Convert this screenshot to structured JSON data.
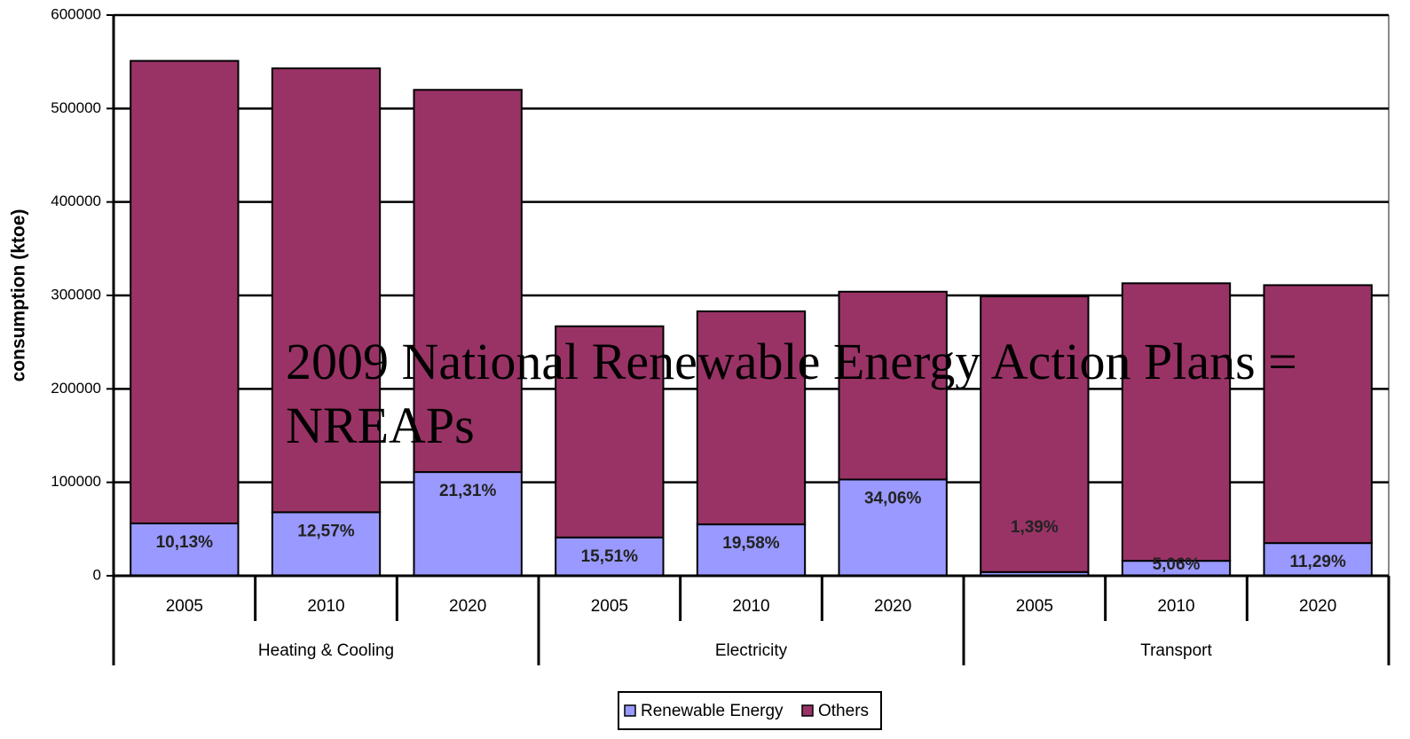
{
  "chart_data": {
    "type": "stacked_bar",
    "title": "2009 National Renewable Energy Action Plans = NREAPs",
    "y_label": "consumption (ktoe)",
    "groups": [
      {
        "name": "Heating & Cooling",
        "categories": [
          "2005",
          "2010",
          "2020"
        ]
      },
      {
        "name": "Electricity",
        "categories": [
          "2005",
          "2010",
          "2020"
        ]
      },
      {
        "name": "Transport",
        "categories": [
          "2005",
          "2010",
          "2020"
        ]
      }
    ],
    "series": [
      {
        "name": "Renewable Energy",
        "color": "#9999ff",
        "values": [
          56000,
          68000,
          111000,
          41000,
          55000,
          103000,
          4000,
          16000,
          35000
        ]
      },
      {
        "name": "Others",
        "color": "#993366",
        "values": [
          495000,
          475000,
          409000,
          226000,
          228000,
          201000,
          295000,
          297000,
          276000
        ]
      }
    ],
    "annotations": [
      "10,13%",
      "12,57%",
      "21,31%",
      "15,51%",
      "19,58%",
      "34,06%",
      "1,39%",
      "5,06%",
      "11,29%"
    ],
    "ylim": [
      0,
      600000
    ],
    "yticks": [
      0,
      100000,
      200000,
      300000,
      400000,
      500000,
      600000
    ],
    "grid": true,
    "legend": "bottom"
  }
}
